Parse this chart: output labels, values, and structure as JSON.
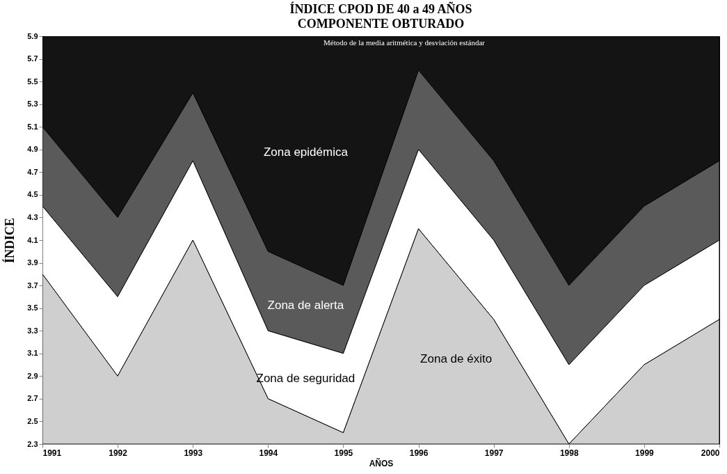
{
  "chart_data": {
    "type": "area",
    "title": "ÍNDICE CPOD DE 40 a 49 AÑOS",
    "subtitle": "COMPONENTE OBTURADO",
    "xlabel": "AÑOS",
    "ylabel": "ÍNDICE",
    "x": [
      1991,
      1992,
      1993,
      1994,
      1995,
      1996,
      1997,
      1998,
      1999,
      2000
    ],
    "series": [
      {
        "name": "Zona de éxito",
        "color": "#cfcfcf",
        "values": [
          3.8,
          2.9,
          4.1,
          2.7,
          2.4,
          4.2,
          3.4,
          2.3,
          3.0,
          3.4
        ]
      },
      {
        "name": "Zona de seguridad",
        "color": "#ffffff",
        "values": [
          4.4,
          3.6,
          4.8,
          3.3,
          3.1,
          4.9,
          4.1,
          3.0,
          3.7,
          4.1
        ]
      },
      {
        "name": "Zona de alerta",
        "color": "#5a5a5a",
        "values": [
          5.1,
          4.3,
          5.4,
          4.0,
          3.7,
          5.6,
          4.8,
          3.7,
          4.4,
          4.8
        ]
      },
      {
        "name": "Zona epidémica",
        "color": "#141414",
        "values": [
          5.9,
          5.9,
          5.9,
          5.9,
          5.9,
          5.9,
          5.9,
          5.9,
          5.9,
          5.9
        ]
      }
    ],
    "xlim": [
      1991,
      2000
    ],
    "xticks": [
      1991,
      1992,
      1993,
      1994,
      1995,
      1996,
      1997,
      1998,
      1999,
      2000
    ],
    "ylim": [
      2.3,
      5.9
    ],
    "yticks": [
      2.3,
      2.5,
      2.7,
      2.9,
      3.1,
      3.3,
      3.5,
      3.7,
      3.9,
      4.1,
      4.3,
      4.5,
      4.7,
      4.9,
      5.1,
      5.3,
      5.5,
      5.7,
      5.9
    ],
    "annotations": [
      "Método de la media aritmética y desviación estándar"
    ],
    "grid": false,
    "legend": false
  }
}
